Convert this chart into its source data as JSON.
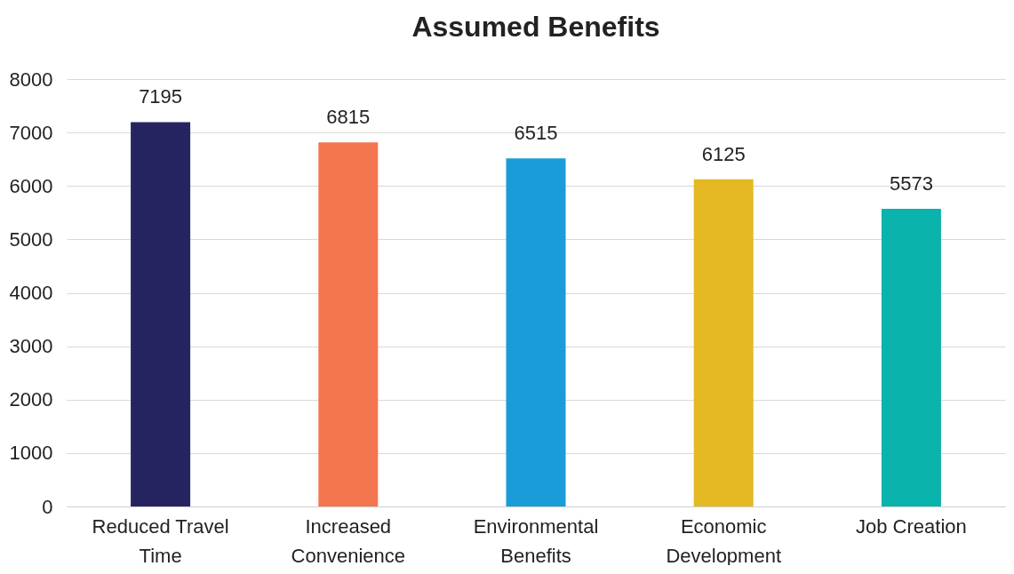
{
  "chart_data": {
    "type": "bar",
    "title": "Assumed Benefits",
    "categories": [
      "Reduced Travel Time",
      "Increased Convenience",
      "Environmental Benefits",
      "Economic Development",
      "Job Creation"
    ],
    "values": [
      7195,
      6815,
      6515,
      6125,
      5573
    ],
    "colors": [
      "#262460",
      "#f4764e",
      "#1a9cd8",
      "#e3b822",
      "#0ab3ac"
    ],
    "ylim": [
      0,
      8000
    ],
    "yticks": [
      0,
      1000,
      2000,
      3000,
      4000,
      5000,
      6000,
      7000,
      8000
    ],
    "grid": "y",
    "data_labels": true
  }
}
